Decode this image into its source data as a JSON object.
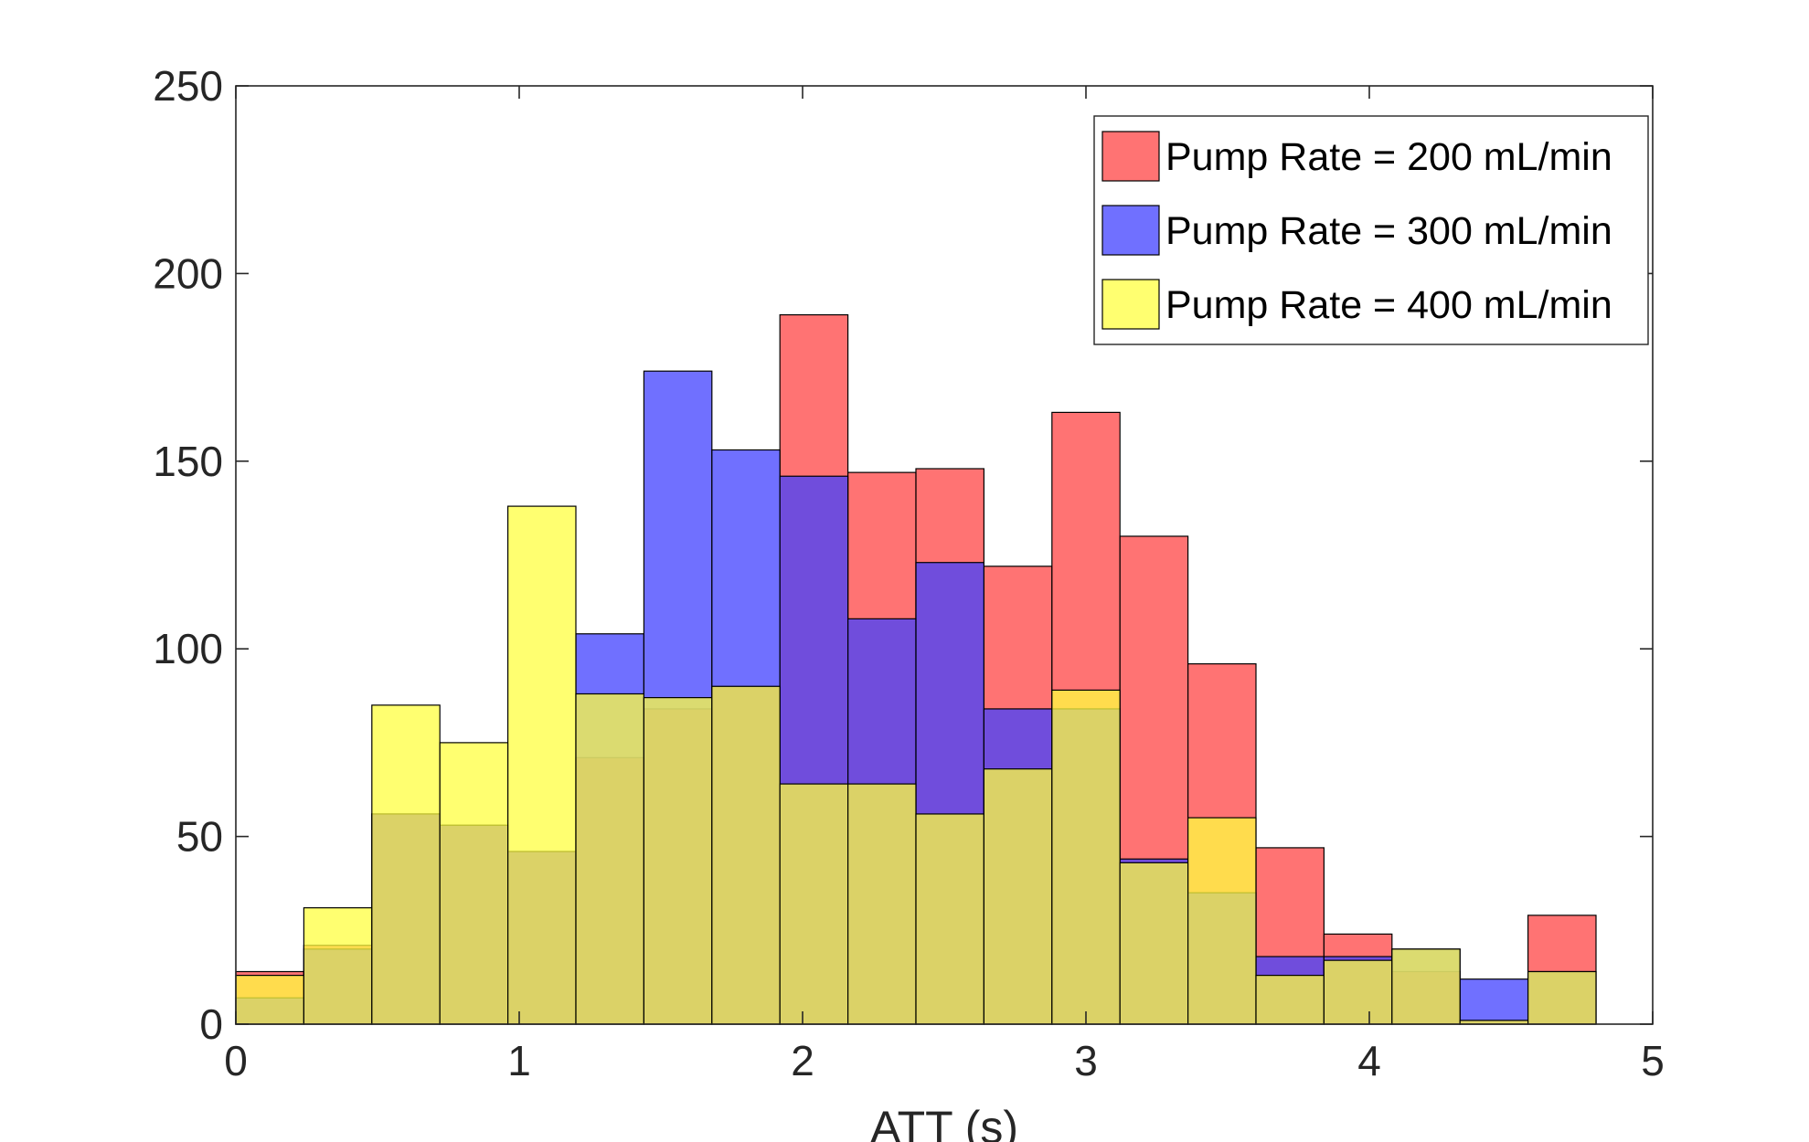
{
  "chart_data": {
    "type": "bar",
    "subtype": "overlaid-histogram",
    "title": "",
    "xlabel": "ATT (s)",
    "ylabel": "",
    "xlim": [
      0,
      5
    ],
    "ylim": [
      0,
      250
    ],
    "xticks": [
      0,
      1,
      2,
      3,
      4,
      5
    ],
    "yticks": [
      0,
      50,
      100,
      150,
      200,
      250
    ],
    "grid": false,
    "legend_position": "top-right",
    "bin_edges": [
      0,
      0.24,
      0.48,
      0.72,
      0.96,
      1.2,
      1.44,
      1.68,
      1.92,
      2.16,
      2.4,
      2.64,
      2.88,
      3.12,
      3.36,
      3.6,
      3.84,
      4.08,
      4.32,
      4.56,
      4.8
    ],
    "series": [
      {
        "name": "Pump Rate = 200 mL/min",
        "color": "#ff4444",
        "values": [
          14,
          21,
          56,
          53,
          46,
          71,
          84,
          90,
          189,
          147,
          148,
          122,
          163,
          130,
          96,
          47,
          24,
          14,
          1,
          29
        ]
      },
      {
        "name": "Pump Rate = 300 mL/min",
        "color": "#4040ff",
        "values": [
          7,
          20,
          56,
          53,
          46,
          104,
          174,
          153,
          146,
          108,
          123,
          84,
          84,
          44,
          35,
          18,
          18,
          20,
          12,
          14
        ]
      },
      {
        "name": "Pump Rate = 400 mL/min",
        "color": "#ffff40",
        "values": [
          13,
          31,
          85,
          75,
          138,
          88,
          87,
          90,
          64,
          64,
          56,
          68,
          89,
          43,
          55,
          13,
          17,
          20,
          1,
          14
        ]
      }
    ]
  }
}
